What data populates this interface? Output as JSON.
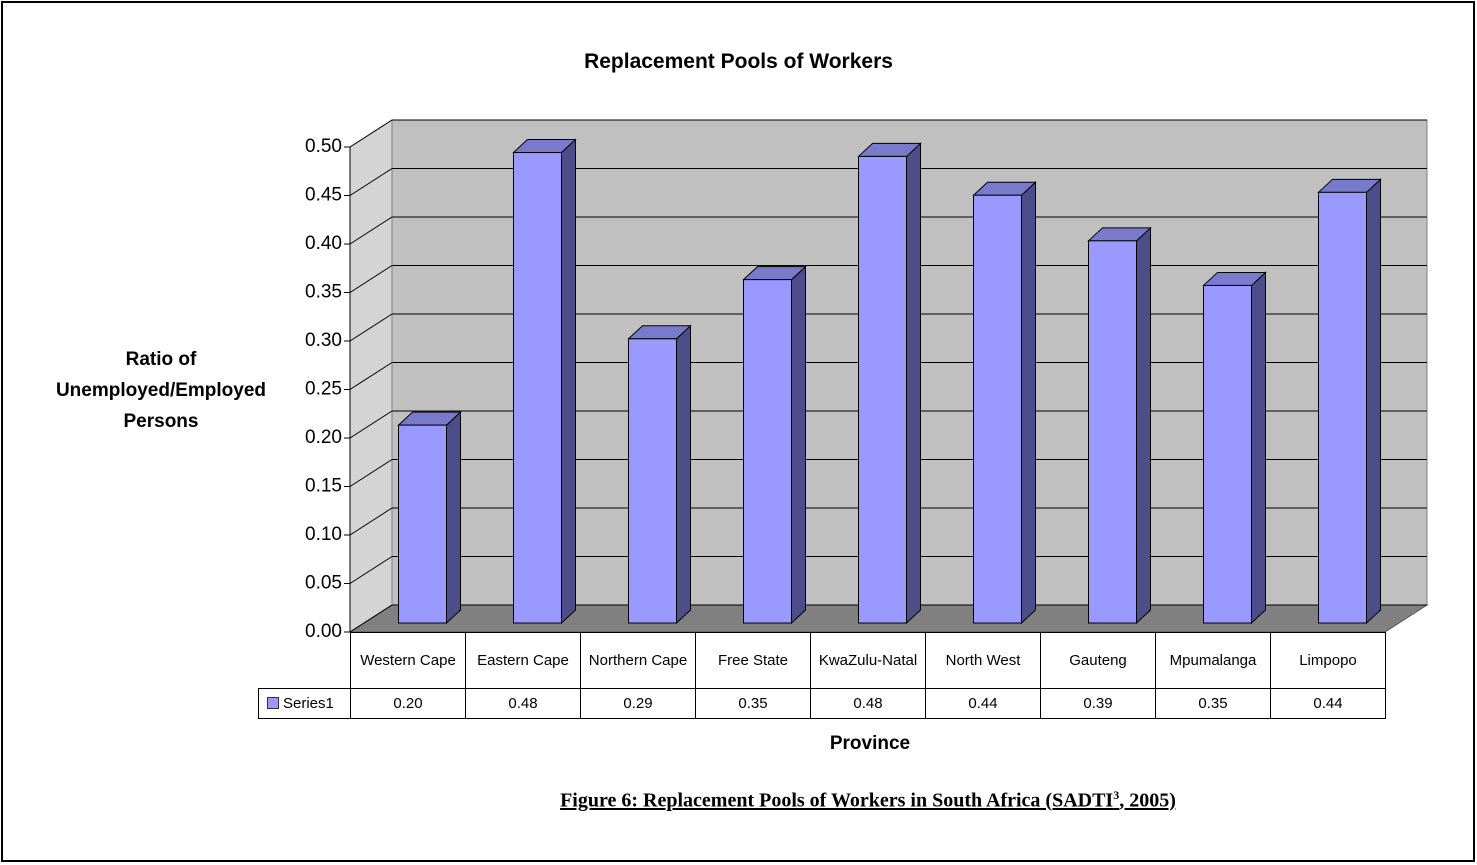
{
  "chart_data": {
    "type": "bar",
    "title": "Replacement Pools of Workers",
    "y_label": "Ratio of Unemployed/Employed Persons",
    "x_label": "Province",
    "categories": [
      "Western Cape",
      "Eastern Cape",
      "Northern Cape",
      "Free State",
      "KwaZulu-Natal",
      "North West",
      "Gauteng",
      "Mpumalanga",
      "Limpopo"
    ],
    "series": [
      {
        "name": "Series1",
        "color": "#9999ff",
        "values": [
          0.204,
          0.485,
          0.293,
          0.354,
          0.481,
          0.441,
          0.394,
          0.348,
          0.444
        ],
        "value_labels": [
          "0.20",
          "0.48",
          "0.29",
          "0.35",
          "0.48",
          "0.44",
          "0.39",
          "0.35",
          "0.44"
        ]
      }
    ],
    "ylim": [
      0,
      0.5
    ],
    "yticks": [
      {
        "value": 0,
        "label": "0.00"
      },
      {
        "value": 0.05,
        "label": "0.05"
      },
      {
        "value": 0.1,
        "label": "0.10"
      },
      {
        "value": 0.15,
        "label": "0.15"
      },
      {
        "value": 0.2,
        "label": "0.20"
      },
      {
        "value": 0.25,
        "label": "0.25"
      },
      {
        "value": 0.3,
        "label": "0.30"
      },
      {
        "value": 0.35,
        "label": "0.35"
      },
      {
        "value": 0.4,
        "label": "0.40"
      },
      {
        "value": 0.45,
        "label": "0.45"
      },
      {
        "value": 0.5,
        "label": "0.50"
      }
    ],
    "grid": true
  },
  "caption": [
    "Figure 6: Replacement Pools of Workers in South Africa (SADTI",
    "3",
    ", 2005)"
  ]
}
